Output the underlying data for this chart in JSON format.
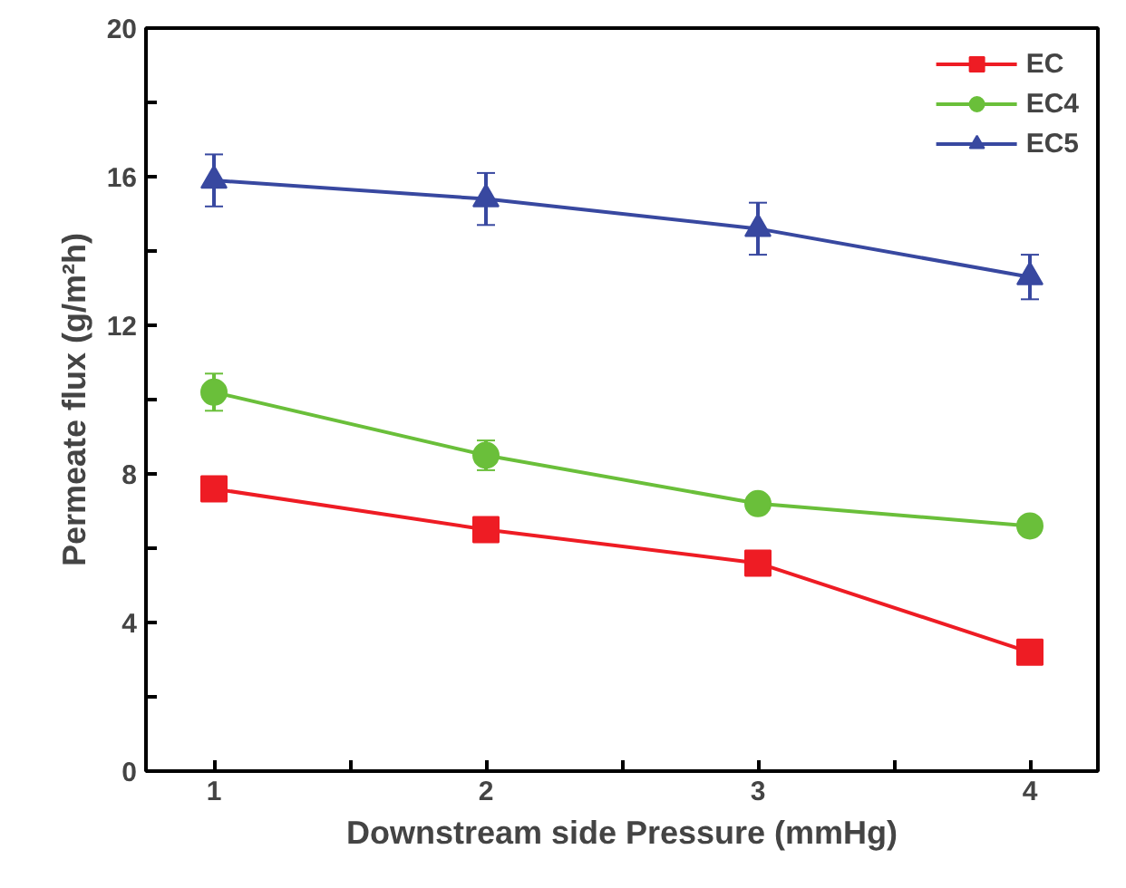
{
  "chart_data": {
    "type": "line",
    "xlabel": "Downstream side Pressure (mmHg)",
    "ylabel": "Permeate flux (g/m²h)",
    "x": [
      1,
      2,
      3,
      4
    ],
    "xlim": [
      0.75,
      4.25
    ],
    "xticks": [
      1,
      {
        "value": 1.5,
        "label": null
      },
      2,
      {
        "value": 2.5,
        "label": null
      },
      3,
      {
        "value": 3.5,
        "label": null
      },
      4
    ],
    "ylim": [
      0,
      20
    ],
    "yticks": [
      0,
      {
        "value": 2,
        "label": null
      },
      4,
      {
        "value": 6,
        "label": null
      },
      8,
      {
        "value": 10,
        "label": null
      },
      12,
      {
        "value": 14,
        "label": null
      },
      16,
      {
        "value": 18,
        "label": null
      },
      20
    ],
    "grid": false,
    "legend": "top right",
    "line_style": "solid",
    "series": [
      {
        "name": "EC",
        "color": "#ee1c24",
        "marker": "square",
        "values": [
          7.6,
          6.5,
          5.6,
          3.2
        ]
      },
      {
        "name": "EC4",
        "color": "#6abf3a",
        "marker": "circle",
        "values": [
          10.2,
          8.5,
          7.2,
          6.6
        ],
        "errors": [
          0.5,
          0.4,
          null,
          null
        ]
      },
      {
        "name": "EC5",
        "color": "#3848a0",
        "marker": "triangle",
        "values": [
          15.9,
          15.4,
          14.6,
          13.3
        ],
        "errors": [
          0.7,
          0.7,
          0.7,
          0.6
        ]
      }
    ]
  }
}
